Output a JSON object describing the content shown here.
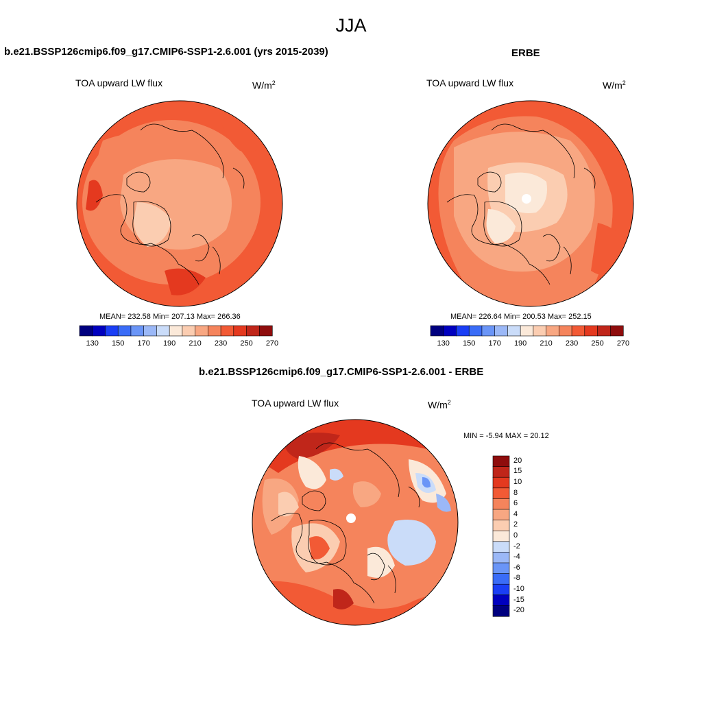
{
  "main_title": "JJA",
  "panels": [
    {
      "title": "b.e21.BSSP126cmip6.f09_g17.CMIP6-SSP1-2.6.001 (yrs 2015-2039)",
      "left_label": "TOA upward LW flux",
      "unit": "W/m",
      "unit_sup": "2",
      "stats": "MEAN= 232.58  Min= 207.13  Max= 266.36"
    },
    {
      "title": "ERBE",
      "left_label": "TOA upward LW flux",
      "unit": "W/m",
      "unit_sup": "2",
      "stats": "MEAN= 226.64  Min= 200.53  Max= 252.15"
    },
    {
      "title": "b.e21.BSSP126cmip6.f09_g17.CMIP6-SSP1-2.6.001 - ERBE",
      "left_label": "TOA upward LW flux",
      "unit": "W/m",
      "unit_sup": "2",
      "stats": "MIN =  -5.94 MAX =  20.12"
    }
  ],
  "abs_colorbar": {
    "colors": [
      "#00007f",
      "#0000bf",
      "#1a3ef5",
      "#3a6cf7",
      "#6a95f7",
      "#9bb8f7",
      "#cadcf9",
      "#fbe9d9",
      "#fbcdb1",
      "#f8a782",
      "#f5845c",
      "#f25a35",
      "#e4391f",
      "#c0261a",
      "#8f0d0d"
    ],
    "tick_labels": [
      "130",
      "150",
      "170",
      "190",
      "210",
      "230",
      "250",
      "270"
    ]
  },
  "diff_colorbar": {
    "colors": [
      "#8f0d0d",
      "#c0261a",
      "#e4391f",
      "#f25a35",
      "#f5845c",
      "#f8a782",
      "#fbcdb1",
      "#fbe9d9",
      "#cadcf9",
      "#9bb8f7",
      "#6a95f7",
      "#3a6cf7",
      "#1a3ef5",
      "#0000bf",
      "#00007f"
    ],
    "tick_labels": [
      "20",
      "15",
      "10",
      "8",
      "6",
      "4",
      "2",
      "0",
      "-2",
      "-4",
      "-6",
      "-8",
      "-10",
      "-15",
      "-20"
    ]
  }
}
